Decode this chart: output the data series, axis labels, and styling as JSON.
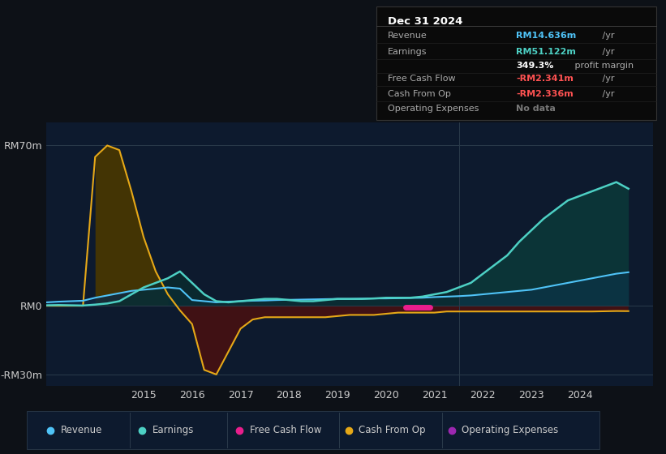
{
  "bg_color": "#0d1117",
  "plot_bg_color": "#0d1a2e",
  "title_box": {
    "date": "Dec 31 2024",
    "rows": [
      {
        "label": "Revenue",
        "value": "RM14.636m",
        "value_color": "#4fc3f7",
        "suffix": " /yr",
        "extra": null
      },
      {
        "label": "Earnings",
        "value": "RM51.122m",
        "value_color": "#4dd0c4",
        "suffix": " /yr",
        "extra": "349.3% profit margin"
      },
      {
        "label": "",
        "value": "349.3%",
        "value_color": "#ffffff",
        "suffix": " profit margin",
        "extra": null
      },
      {
        "label": "Free Cash Flow",
        "value": "-RM2.341m",
        "value_color": "#ff5252",
        "suffix": " /yr",
        "extra": null
      },
      {
        "label": "Cash From Op",
        "value": "-RM2.336m",
        "value_color": "#ff5252",
        "suffix": " /yr",
        "extra": null
      },
      {
        "label": "Operating Expenses",
        "value": "No data",
        "value_color": "#777777",
        "suffix": "",
        "extra": null
      }
    ]
  },
  "ylim": [
    -35,
    80
  ],
  "yticks": [
    -30,
    0,
    70
  ],
  "ytick_labels": [
    "-RM30m",
    "RM0",
    "RM70m"
  ],
  "xlim": [
    2013.0,
    2025.5
  ],
  "xticks": [
    2015,
    2016,
    2017,
    2018,
    2019,
    2020,
    2021,
    2022,
    2023,
    2024
  ],
  "revenue_color": "#4fc3f7",
  "earnings_color": "#4dd0c4",
  "cashfromop_color": "#e6a817",
  "freecashflow_color": "#e91e8c",
  "opex_color": "#9c27b0",
  "years": [
    2013.0,
    2013.25,
    2013.5,
    2013.75,
    2014.0,
    2014.25,
    2014.5,
    2014.75,
    2015.0,
    2015.25,
    2015.5,
    2015.75,
    2016.0,
    2016.25,
    2016.5,
    2016.75,
    2017.0,
    2017.25,
    2017.5,
    2017.75,
    2018.0,
    2018.25,
    2018.5,
    2018.75,
    2019.0,
    2019.25,
    2019.5,
    2019.75,
    2020.0,
    2020.25,
    2020.5,
    2020.75,
    2021.0,
    2021.25,
    2021.5,
    2021.75,
    2022.0,
    2022.25,
    2022.5,
    2022.75,
    2023.0,
    2023.25,
    2023.5,
    2023.75,
    2024.0,
    2024.25,
    2024.5,
    2024.75,
    2025.0
  ],
  "revenue": [
    1.5,
    1.8,
    2.0,
    2.2,
    3.5,
    4.5,
    5.5,
    6.5,
    7.0,
    7.5,
    8.0,
    7.5,
    2.5,
    2.0,
    1.5,
    1.8,
    2.0,
    2.2,
    2.3,
    2.5,
    2.6,
    2.7,
    2.8,
    2.9,
    3.0,
    3.0,
    3.1,
    3.2,
    3.2,
    3.3,
    3.4,
    3.5,
    3.8,
    4.0,
    4.2,
    4.5,
    5.0,
    5.5,
    6.0,
    6.5,
    7.0,
    8.0,
    9.0,
    10.0,
    11.0,
    12.0,
    13.0,
    14.0,
    14.636
  ],
  "earnings": [
    0.2,
    0.3,
    0.2,
    0.1,
    0.5,
    1.0,
    2.0,
    5.0,
    8.0,
    10.0,
    12.0,
    15.0,
    10.0,
    5.0,
    2.0,
    1.5,
    2.0,
    2.5,
    3.0,
    3.0,
    2.5,
    2.0,
    2.0,
    2.5,
    3.0,
    3.0,
    3.0,
    3.2,
    3.5,
    3.5,
    3.5,
    4.0,
    5.0,
    6.0,
    8.0,
    10.0,
    14.0,
    18.0,
    22.0,
    28.0,
    33.0,
    38.0,
    42.0,
    46.0,
    48.0,
    50.0,
    52.0,
    54.0,
    51.122
  ],
  "cashfromop": [
    0.0,
    0.0,
    0.0,
    0.0,
    65.0,
    70.0,
    68.0,
    50.0,
    30.0,
    15.0,
    5.0,
    -2.0,
    -8.0,
    -28.0,
    -30.0,
    -20.0,
    -10.0,
    -6.0,
    -5.0,
    -5.0,
    -5.0,
    -5.0,
    -5.0,
    -5.0,
    -4.5,
    -4.0,
    -4.0,
    -4.0,
    -3.5,
    -3.0,
    -3.0,
    -3.0,
    -3.0,
    -2.5,
    -2.5,
    -2.5,
    -2.5,
    -2.5,
    -2.5,
    -2.5,
    -2.5,
    -2.5,
    -2.5,
    -2.5,
    -2.5,
    -2.5,
    -2.4,
    -2.3,
    -2.336
  ],
  "legend_items": [
    {
      "label": "Revenue",
      "color": "#4fc3f7"
    },
    {
      "label": "Earnings",
      "color": "#4dd0c4"
    },
    {
      "label": "Free Cash Flow",
      "color": "#e91e8c"
    },
    {
      "label": "Cash From Op",
      "color": "#e6a817"
    },
    {
      "label": "Operating Expenses",
      "color": "#9c27b0"
    }
  ],
  "highlight_x": 2021.5
}
